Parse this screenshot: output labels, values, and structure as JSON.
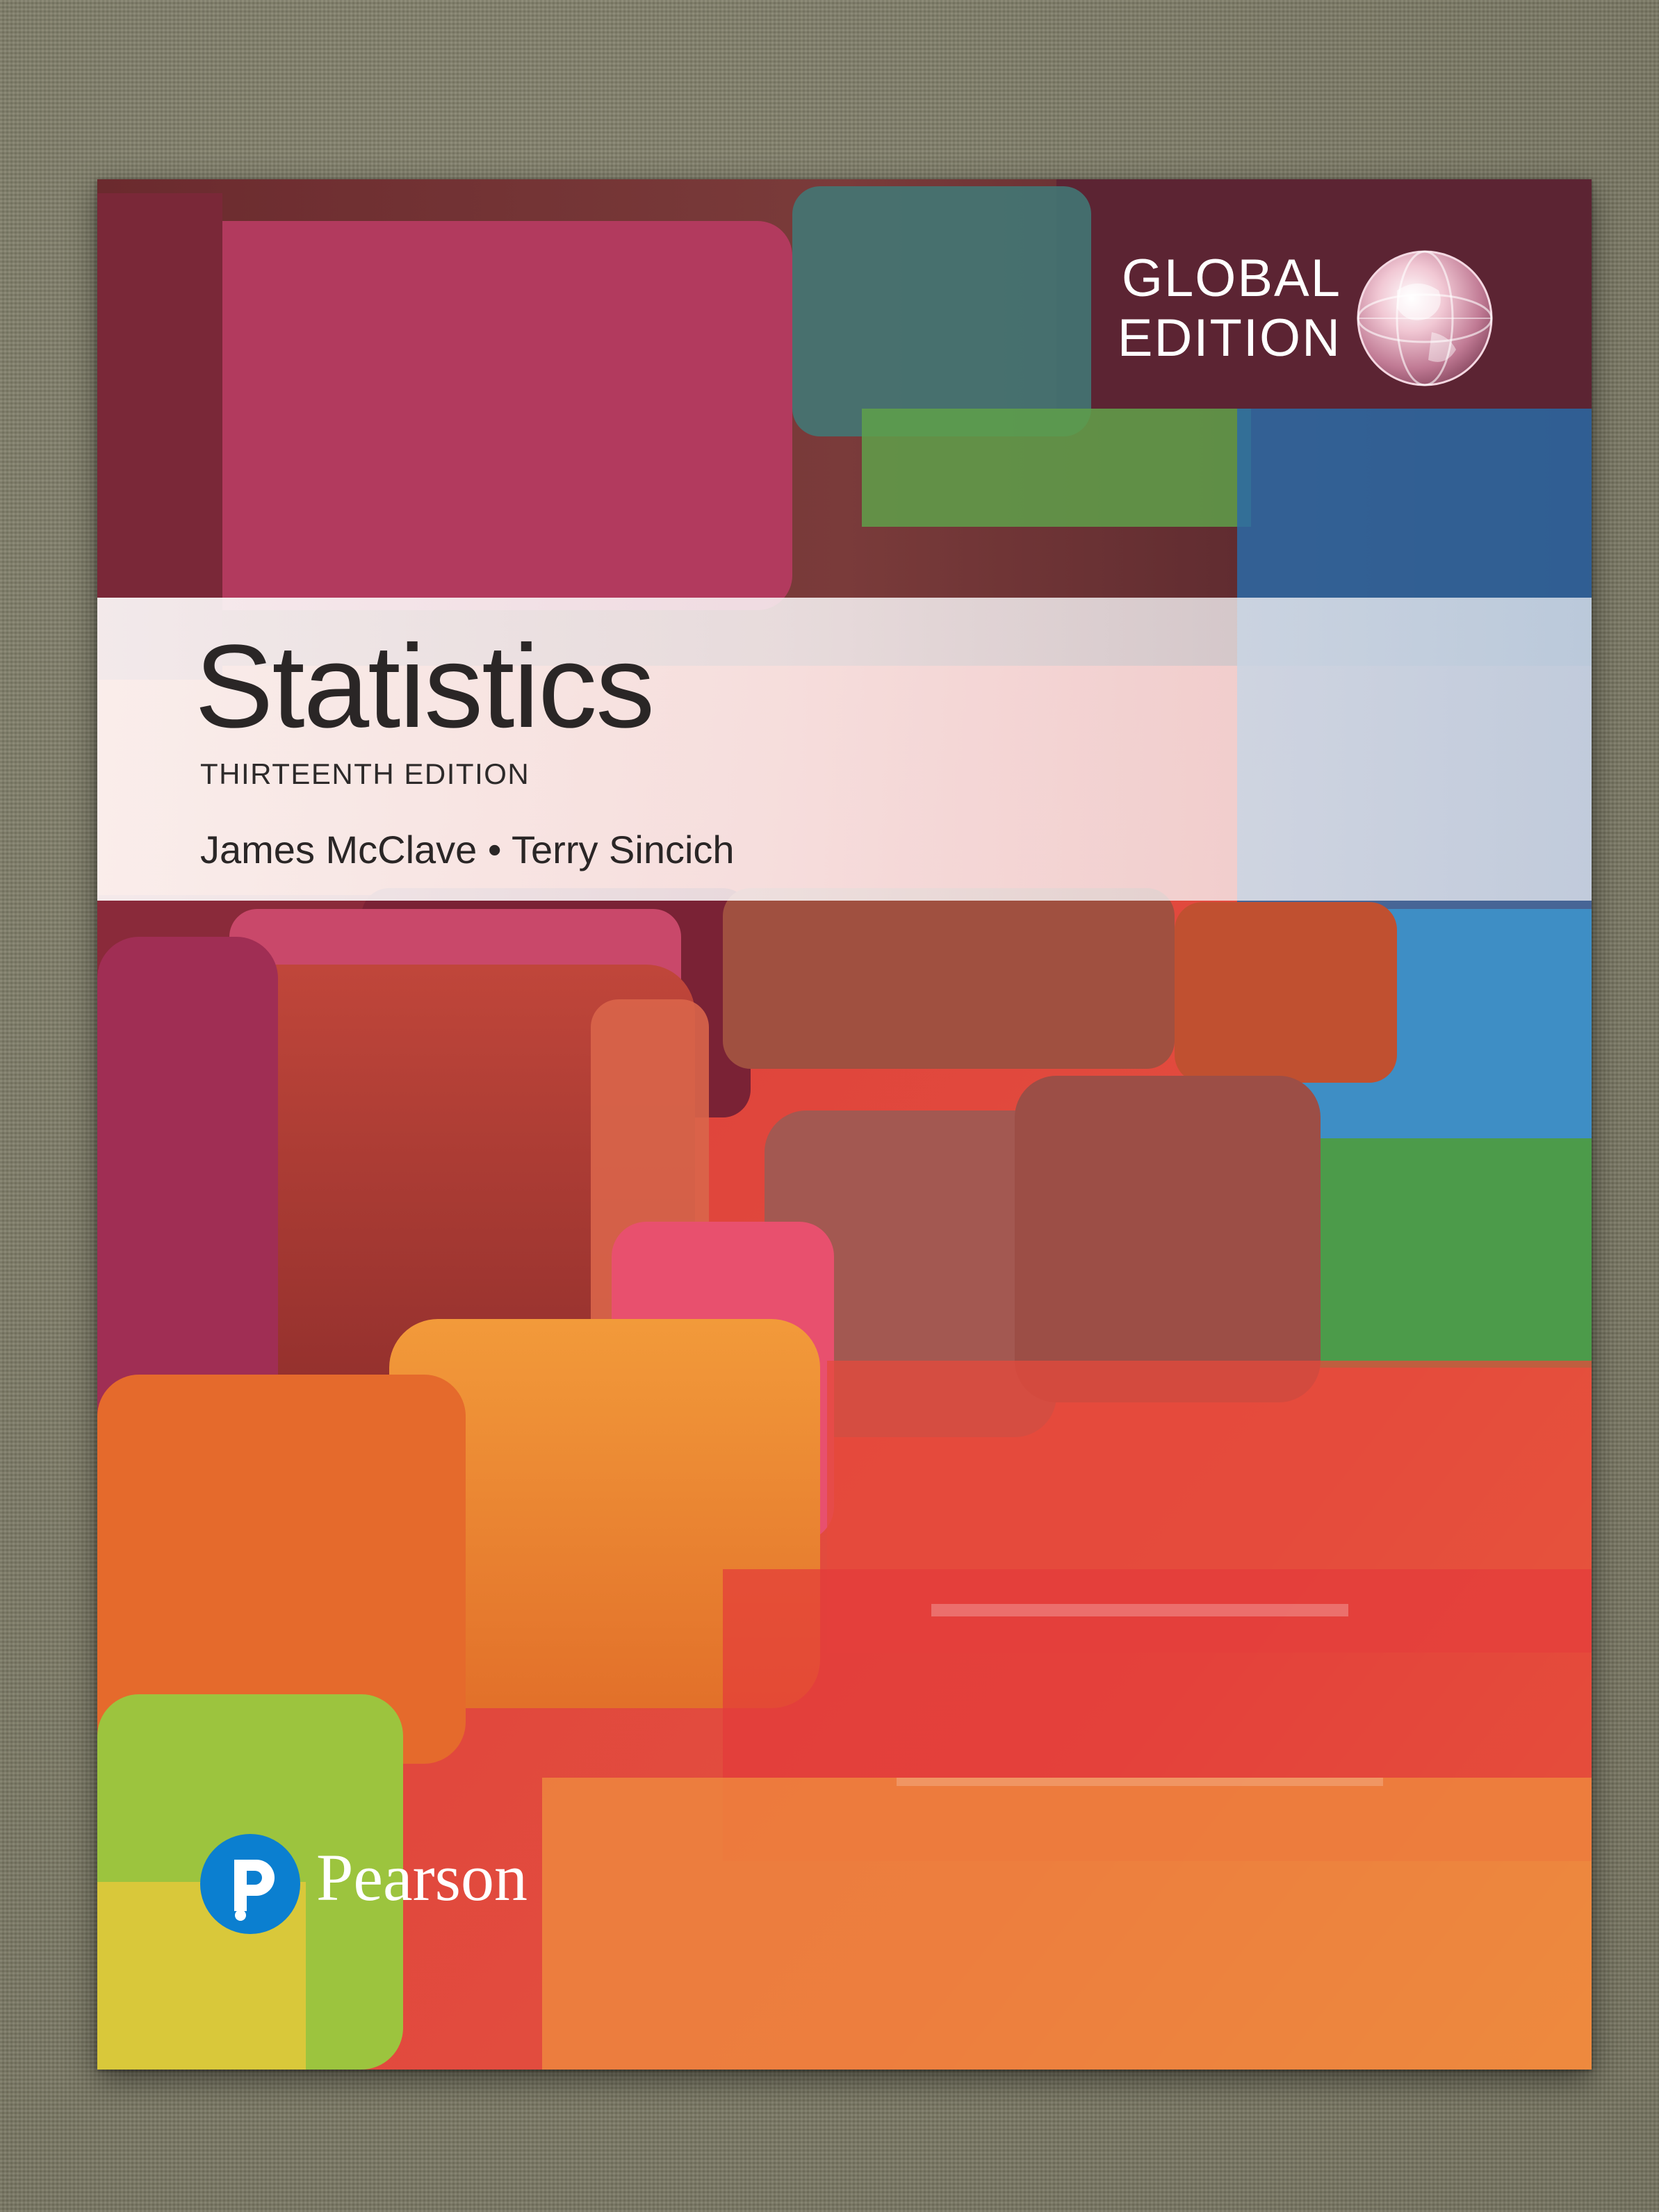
{
  "badge": {
    "line1": "GLOBAL",
    "line2": "EDITION"
  },
  "cover": {
    "title": "Statistics",
    "edition": "THIRTEENTH EDITION",
    "authors": "James McClave • Terry Sincich"
  },
  "publisher": {
    "name": "Pearson"
  },
  "icons": {
    "globe": "globe-icon",
    "publisher_logo": "pearson-logo-icon"
  },
  "colors": {
    "background_fabric": "#7d7b69",
    "title_text": "#2a2626",
    "pearson_blue": "#0b7fd0",
    "badge_text": "#ffffff"
  }
}
